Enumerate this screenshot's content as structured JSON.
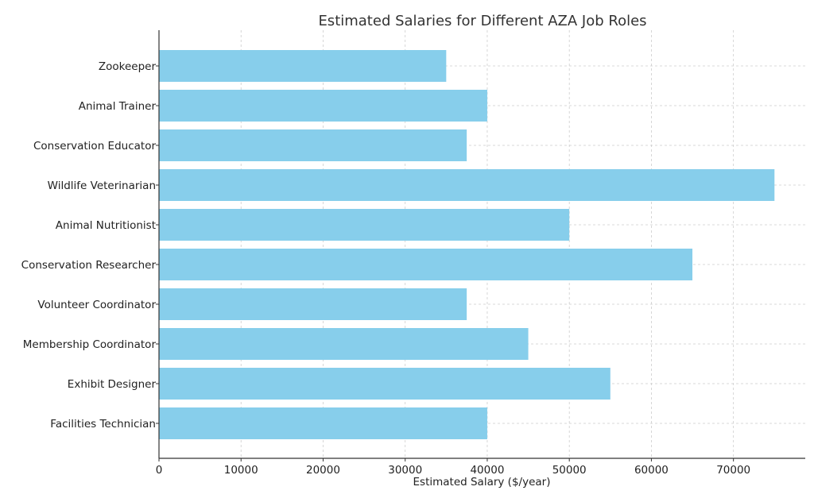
{
  "chart_data": {
    "type": "bar",
    "orientation": "horizontal",
    "title": "Estimated Salaries for Different AZA Job Roles",
    "xlabel": "Estimated Salary ($/year)",
    "ylabel": "",
    "categories": [
      "Zookeeper",
      "Animal Trainer",
      "Conservation Educator",
      "Wildlife Veterinarian",
      "Animal Nutritionist",
      "Conservation Researcher",
      "Volunteer Coordinator",
      "Membership Coordinator",
      "Exhibit Designer",
      "Facilities Technician"
    ],
    "values": [
      35000,
      40000,
      37500,
      75000,
      50000,
      65000,
      37500,
      45000,
      55000,
      40000
    ],
    "xlim": [
      0,
      78750
    ],
    "xticks": [
      0,
      10000,
      20000,
      30000,
      40000,
      50000,
      60000,
      70000
    ],
    "xtick_labels": [
      "0",
      "10000",
      "20000",
      "30000",
      "40000",
      "50000",
      "60000",
      "70000"
    ],
    "grid": true,
    "bar_color": "#87ceeb"
  }
}
